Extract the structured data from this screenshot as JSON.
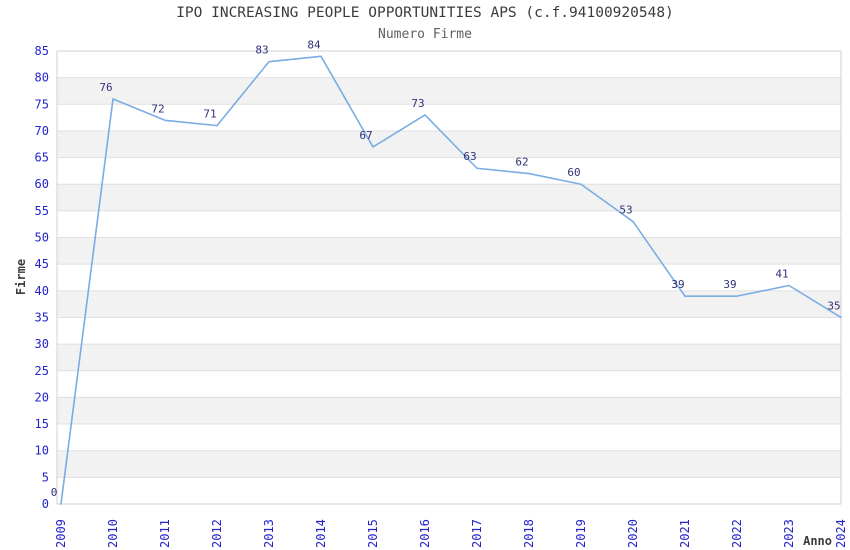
{
  "chart_data": {
    "type": "line",
    "title": "IPO INCREASING PEOPLE OPPORTUNITIES APS (c.f.94100920548)",
    "subtitle": "Numero Firme",
    "xlabel": "Anno",
    "ylabel": "Firme",
    "categories": [
      "2009",
      "2010",
      "2011",
      "2012",
      "2013",
      "2014",
      "2015",
      "2016",
      "2017",
      "2018",
      "2019",
      "2020",
      "2021",
      "2022",
      "2023",
      "2024"
    ],
    "series": [
      {
        "name": "Numero Firme",
        "values": [
          0,
          76,
          72,
          71,
          83,
          84,
          67,
          73,
          63,
          62,
          60,
          53,
          39,
          39,
          41,
          35
        ]
      }
    ],
    "ylim": [
      0,
      85
    ],
    "ytick_step": 5,
    "grid": "horizontal",
    "band_shading": "alternating-5-unit-bands",
    "legend": "none",
    "data_labels_shown": true,
    "x_tick_rotation_deg": 90,
    "colors": {
      "line": "#79ade3",
      "data_label": "#323278",
      "tick_label": "#2323cd",
      "title": "#3c3c3c",
      "subtitle": "#606060",
      "axis_label": "#3c3c3c",
      "band": "#f2f2f2",
      "gridline": "#e0e0e0",
      "border": "#d0d0d0",
      "background": "#ffffff"
    }
  }
}
